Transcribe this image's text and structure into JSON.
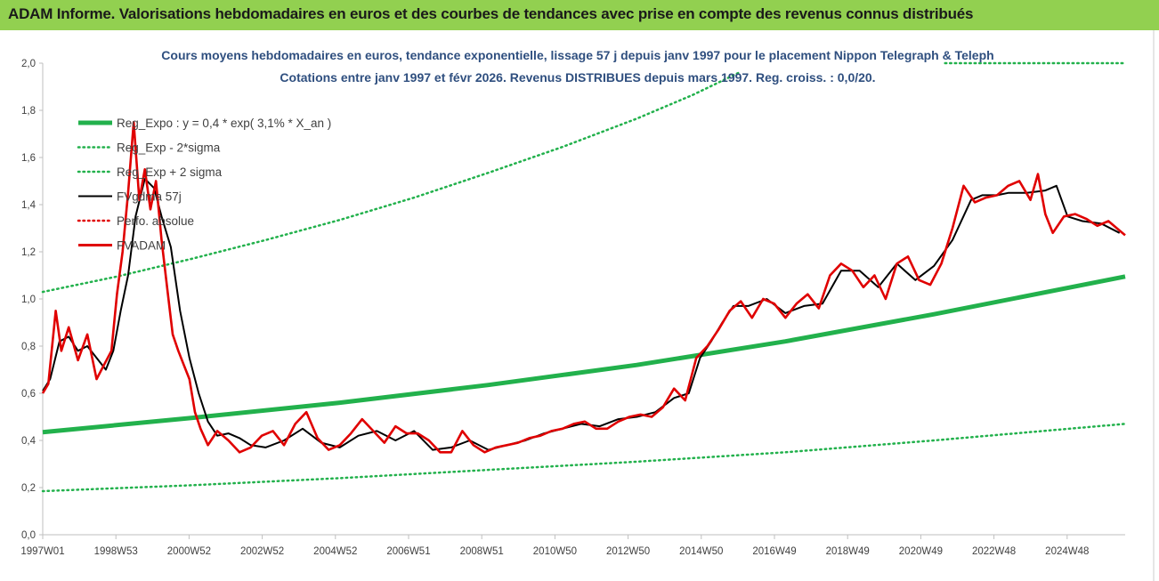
{
  "banner": {
    "title": "ADAM Informe. Valorisations hebdomadaires en euros et des courbes de tendances avec prise en compte des revenus connus distribués",
    "color": "#92d050"
  },
  "chart_data": {
    "type": "line",
    "title_line1": "Cours moyens hebdomadaires en euros, tendance exponentielle, lissage 57 j depuis janv 1997 pour le placement Nippon Telegraph & Teleph",
    "title_line2": "Cotations entre janv 1997 et févr 2026. Revenus DISTRIBUES depuis mars 1997. Reg. croiss. : 0,0/20.",
    "x_ticks": [
      "1997W01",
      "1998W53",
      "2000W52",
      "2002W52",
      "2004W52",
      "2006W51",
      "2008W51",
      "2010W50",
      "2012W50",
      "2014W50",
      "2016W49",
      "2018W49",
      "2020W49",
      "2022W48",
      "2024W48"
    ],
    "x_range": [
      1997.0,
      2026.15
    ],
    "y_ticks": [
      "0,0",
      "0,2",
      "0,4",
      "0,6",
      "0,8",
      "1,0",
      "1,2",
      "1,4",
      "1,6",
      "1,8",
      "2,0"
    ],
    "ylim": [
      0,
      2.0
    ],
    "grid": false,
    "legend_position": "upper-left",
    "legend": [
      {
        "label": "Reg_Expo : y = 0,4 * exp( 3,1% *  X_an )",
        "color": "#22b14c",
        "style": "solid-thick"
      },
      {
        "label": "Reg_Exp - 2*sigma",
        "color": "#22b14c",
        "style": "dotted"
      },
      {
        "label": "Reg_Exp + 2 sigma",
        "color": "#22b14c",
        "style": "dotted"
      },
      {
        "label": "FVgdma 57j",
        "color": "#000000",
        "style": "solid"
      },
      {
        "label": "Perfo. absolue",
        "color": "#e00000",
        "style": "dotted"
      },
      {
        "label": "FVADAM",
        "color": "#e00000",
        "style": "solid-thick"
      }
    ],
    "series": [
      {
        "name": "Reg_Expo : y = 0,4 * exp( 3,1% *  X_an )",
        "x": [
          1997.0,
          2001.0,
          2005.0,
          2009.0,
          2013.0,
          2017.0,
          2021.0,
          2026.15
        ],
        "values": [
          0.435,
          0.495,
          0.56,
          0.635,
          0.72,
          0.82,
          0.935,
          1.095
        ]
      },
      {
        "name": "Reg_Exp - 2*sigma",
        "x": [
          1997.0,
          2001.0,
          2005.0,
          2009.0,
          2013.0,
          2017.0,
          2021.0,
          2026.15
        ],
        "values": [
          0.185,
          0.21,
          0.24,
          0.275,
          0.31,
          0.35,
          0.4,
          0.47
        ]
      },
      {
        "name": "Reg_Exp + 2 sigma",
        "x": [
          1997.0,
          1999.0,
          2001.0,
          2003.0,
          2005.0,
          2007.0,
          2009.0,
          2011.0,
          2013.0,
          2014.5,
          2015.75
        ],
        "values": [
          1.03,
          1.095,
          1.17,
          1.25,
          1.335,
          1.43,
          1.535,
          1.645,
          1.765,
          1.865,
          1.96
        ]
      },
      {
        "name": "Reg_Exp + 2 sigma (clipped)",
        "x": [
          2021.3,
          2026.15
        ],
        "values": [
          2.0,
          2.0
        ]
      },
      {
        "name": "FVgdma 57j",
        "x": [
          1997.0,
          1997.2,
          1997.45,
          1997.7,
          1997.95,
          1998.2,
          1998.45,
          1998.7,
          1998.9,
          1999.1,
          1999.3,
          1999.5,
          1999.75,
          2000.0,
          2000.2,
          2000.45,
          2000.7,
          2000.95,
          2001.2,
          2001.45,
          2001.7,
          2002.0,
          2002.3,
          2002.6,
          2003.0,
          2003.5,
          2004.0,
          2004.5,
          2005.0,
          2005.5,
          2006.0,
          2006.5,
          2007.0,
          2007.5,
          2008.0,
          2008.5,
          2009.0,
          2009.5,
          2010.0,
          2010.5,
          2011.0,
          2011.5,
          2012.0,
          2012.5,
          2013.0,
          2013.5,
          2014.0,
          2014.4,
          2014.7,
          2015.0,
          2015.3,
          2015.6,
          2016.0,
          2016.5,
          2017.0,
          2017.5,
          2018.0,
          2018.5,
          2019.0,
          2019.5,
          2020.0,
          2020.5,
          2021.0,
          2021.5,
          2022.0,
          2022.3,
          2022.7,
          2023.0,
          2023.5,
          2024.0,
          2024.3,
          2024.6,
          2025.0,
          2025.5,
          2026.0
        ],
        "values": [
          0.61,
          0.66,
          0.82,
          0.84,
          0.78,
          0.8,
          0.75,
          0.7,
          0.78,
          0.95,
          1.1,
          1.35,
          1.51,
          1.47,
          1.35,
          1.22,
          0.95,
          0.75,
          0.6,
          0.48,
          0.42,
          0.43,
          0.41,
          0.38,
          0.37,
          0.4,
          0.45,
          0.39,
          0.37,
          0.42,
          0.44,
          0.4,
          0.44,
          0.36,
          0.37,
          0.4,
          0.36,
          0.38,
          0.4,
          0.43,
          0.45,
          0.47,
          0.46,
          0.49,
          0.5,
          0.52,
          0.58,
          0.6,
          0.75,
          0.82,
          0.9,
          0.97,
          0.97,
          1.0,
          0.94,
          0.97,
          0.98,
          1.12,
          1.12,
          1.05,
          1.15,
          1.08,
          1.14,
          1.25,
          1.42,
          1.44,
          1.44,
          1.45,
          1.45,
          1.46,
          1.48,
          1.35,
          1.33,
          1.32,
          1.28
        ]
      },
      {
        "name": "FVADAM",
        "x": [
          1997.0,
          1997.15,
          1997.35,
          1997.5,
          1997.7,
          1997.95,
          1998.2,
          1998.45,
          1998.65,
          1998.85,
          1999.0,
          1999.15,
          1999.3,
          1999.45,
          1999.6,
          1999.75,
          1999.9,
          2000.05,
          2000.2,
          2000.35,
          2000.5,
          2000.65,
          2000.8,
          2000.95,
          2001.1,
          2001.25,
          2001.45,
          2001.7,
          2002.0,
          2002.3,
          2002.6,
          2002.9,
          2003.2,
          2003.5,
          2003.8,
          2004.1,
          2004.4,
          2004.7,
          2005.0,
          2005.3,
          2005.6,
          2005.9,
          2006.2,
          2006.5,
          2006.8,
          2007.1,
          2007.4,
          2007.7,
          2008.0,
          2008.3,
          2008.6,
          2008.9,
          2009.2,
          2009.5,
          2009.8,
          2010.1,
          2010.4,
          2010.7,
          2011.0,
          2011.3,
          2011.6,
          2011.9,
          2012.2,
          2012.5,
          2012.8,
          2013.1,
          2013.4,
          2013.7,
          2014.0,
          2014.3,
          2014.6,
          2014.9,
          2015.2,
          2015.5,
          2015.8,
          2016.1,
          2016.4,
          2016.7,
          2017.0,
          2017.3,
          2017.6,
          2017.9,
          2018.2,
          2018.5,
          2018.8,
          2019.1,
          2019.4,
          2019.7,
          2020.0,
          2020.3,
          2020.6,
          2020.9,
          2021.2,
          2021.5,
          2021.8,
          2022.1,
          2022.4,
          2022.7,
          2023.0,
          2023.3,
          2023.6,
          2023.8,
          2024.0,
          2024.2,
          2024.5,
          2024.8,
          2025.1,
          2025.4,
          2025.7,
          2026.0,
          2026.15
        ],
        "values": [
          0.6,
          0.64,
          0.95,
          0.78,
          0.88,
          0.74,
          0.85,
          0.66,
          0.72,
          0.78,
          1.02,
          1.2,
          1.45,
          1.75,
          1.42,
          1.55,
          1.38,
          1.5,
          1.25,
          1.05,
          0.85,
          0.78,
          0.72,
          0.66,
          0.52,
          0.45,
          0.38,
          0.44,
          0.4,
          0.35,
          0.37,
          0.42,
          0.44,
          0.38,
          0.47,
          0.52,
          0.41,
          0.36,
          0.38,
          0.43,
          0.49,
          0.44,
          0.39,
          0.46,
          0.43,
          0.43,
          0.4,
          0.35,
          0.35,
          0.44,
          0.38,
          0.35,
          0.37,
          0.38,
          0.39,
          0.41,
          0.42,
          0.44,
          0.45,
          0.47,
          0.48,
          0.45,
          0.45,
          0.48,
          0.5,
          0.51,
          0.5,
          0.54,
          0.62,
          0.57,
          0.75,
          0.8,
          0.87,
          0.95,
          0.99,
          0.92,
          1.0,
          0.98,
          0.92,
          0.98,
          1.02,
          0.96,
          1.1,
          1.15,
          1.12,
          1.05,
          1.1,
          1.0,
          1.15,
          1.18,
          1.08,
          1.06,
          1.15,
          1.3,
          1.48,
          1.41,
          1.43,
          1.44,
          1.48,
          1.5,
          1.42,
          1.53,
          1.36,
          1.28,
          1.35,
          1.36,
          1.34,
          1.31,
          1.33,
          1.29,
          1.27
        ]
      }
    ]
  }
}
